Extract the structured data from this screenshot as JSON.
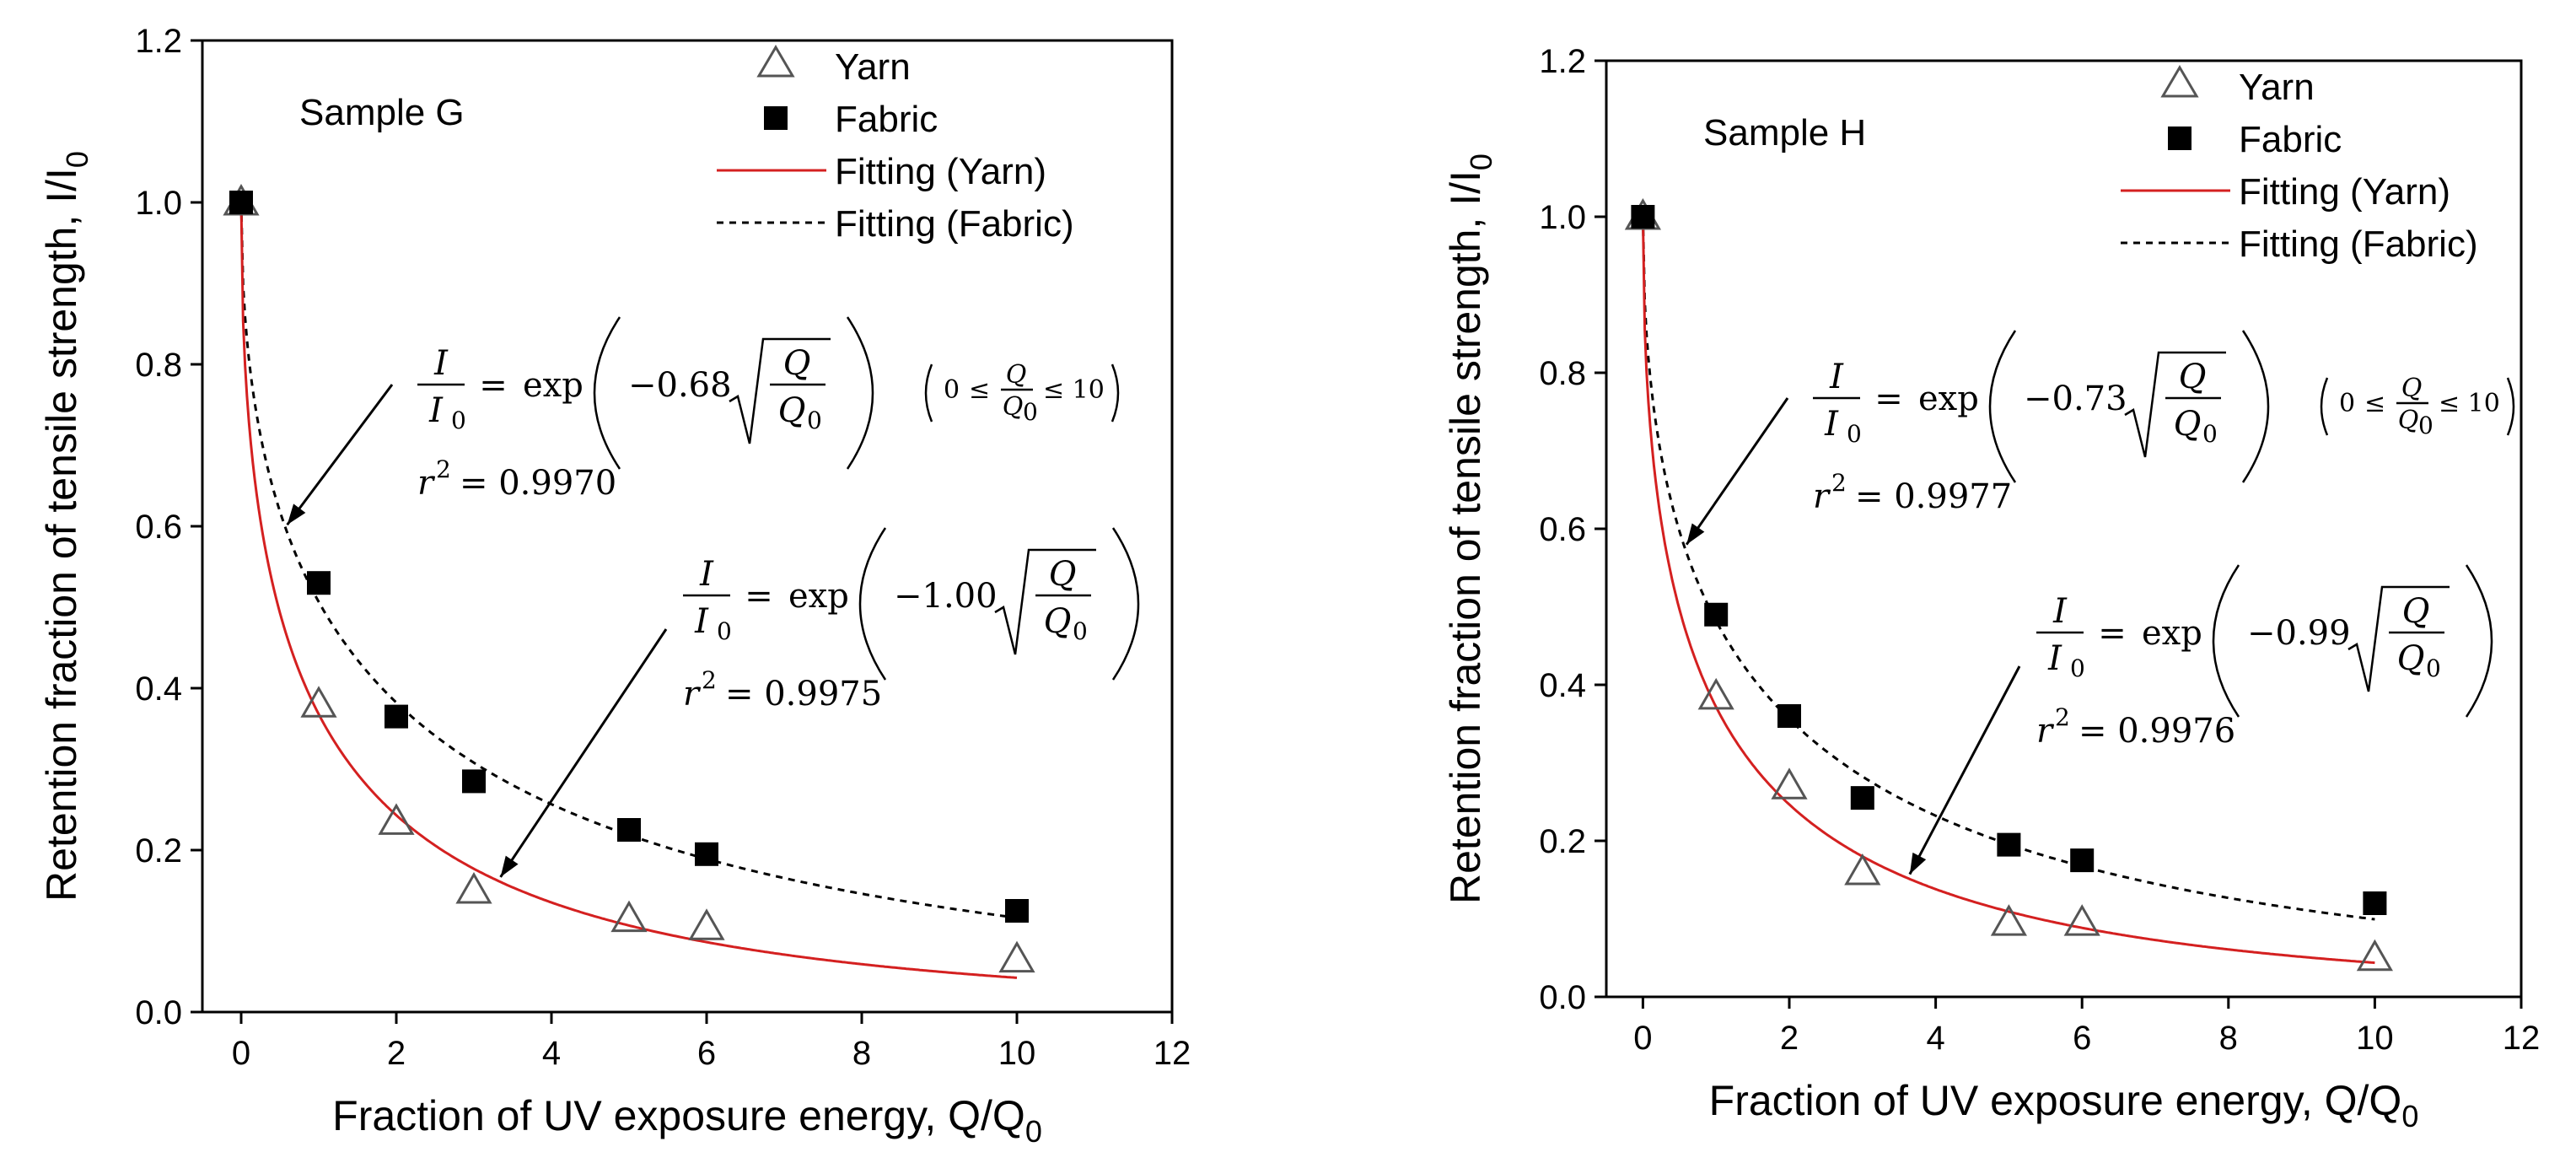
{
  "colors": {
    "fit_yarn": "#d42020",
    "fit_fabric": "#000000",
    "yarn_marker": "#555555",
    "fabric_marker": "#000000"
  },
  "chart_data": [
    {
      "type": "scatter",
      "sample_label": "Sample G",
      "xlabel": "Fraction of UV exposure energy, Q/Q",
      "xlabel_sub": "0",
      "ylabel": "Retention fraction of tensile strength, I/I",
      "ylabel_sub": "0",
      "xlim": [
        -0.5,
        12
      ],
      "ylim": [
        0.0,
        1.2
      ],
      "xticks": [
        0,
        2,
        4,
        6,
        8,
        10,
        12
      ],
      "yticks": [
        0.0,
        0.2,
        0.4,
        0.6,
        0.8,
        1.0,
        1.2
      ],
      "xtick_labels": [
        "0",
        "2",
        "4",
        "6",
        "8",
        "10",
        "12"
      ],
      "ytick_labels": [
        "0.0",
        "0.2",
        "0.4",
        "0.6",
        "0.8",
        "1.0",
        "1.2"
      ],
      "legend": {
        "yarn": "Yarn",
        "fabric": "Fabric",
        "fit_yarn": "Fitting (Yarn)",
        "fit_fabric": "Fitting (Fabric)"
      },
      "series": [
        {
          "name": "Yarn",
          "x": [
            0,
            1,
            2,
            3,
            5,
            6,
            10
          ],
          "y": [
            1.0,
            0.38,
            0.235,
            0.15,
            0.115,
            0.105,
            0.065
          ]
        },
        {
          "name": "Fabric",
          "x": [
            0,
            1,
            2,
            3,
            5,
            6,
            10
          ],
          "y": [
            1.0,
            0.53,
            0.365,
            0.285,
            0.225,
            0.195,
            0.125
          ]
        }
      ],
      "fits": [
        {
          "name": "Fitting (Yarn)",
          "coef": 1.0,
          "r2": "0.9975"
        },
        {
          "name": "Fitting (Fabric)",
          "coef": 0.68,
          "r2": "0.9970"
        }
      ],
      "fabric_eq": {
        "coef_text": "−0.68",
        "r2_text": "= 0.9970",
        "range_text": "≤ 10"
      },
      "yarn_eq": {
        "coef_text": "−1.00",
        "r2_text": "= 0.9975"
      }
    },
    {
      "type": "scatter",
      "sample_label": "Sample H",
      "xlabel": "Fraction of UV exposure energy, Q/Q",
      "xlabel_sub": "0",
      "ylabel": "Retention fraction of tensile strength, I/I",
      "ylabel_sub": "0",
      "xlim": [
        -0.5,
        12
      ],
      "ylim": [
        0.0,
        1.2
      ],
      "xticks": [
        0,
        2,
        4,
        6,
        8,
        10,
        12
      ],
      "yticks": [
        0.0,
        0.2,
        0.4,
        0.6,
        0.8,
        1.0,
        1.2
      ],
      "xtick_labels": [
        "0",
        "2",
        "4",
        "6",
        "8",
        "10",
        "12"
      ],
      "ytick_labels": [
        "0.0",
        "0.2",
        "0.4",
        "0.6",
        "0.8",
        "1.0",
        "1.2"
      ],
      "legend": {
        "yarn": "Yarn",
        "fabric": "Fabric",
        "fit_yarn": "Fitting (Yarn)",
        "fit_fabric": "Fitting (Fabric)"
      },
      "series": [
        {
          "name": "Yarn",
          "x": [
            0,
            1,
            2,
            3,
            5,
            6,
            10
          ],
          "y": [
            1.0,
            0.385,
            0.27,
            0.16,
            0.095,
            0.095,
            0.05
          ]
        },
        {
          "name": "Fabric",
          "x": [
            0,
            1,
            2,
            3,
            5,
            6,
            10
          ],
          "y": [
            1.0,
            0.49,
            0.36,
            0.255,
            0.195,
            0.175,
            0.12
          ]
        }
      ],
      "fits": [
        {
          "name": "Fitting (Yarn)",
          "coef": 0.99,
          "r2": "0.9976"
        },
        {
          "name": "Fitting (Fabric)",
          "coef": 0.73,
          "r2": "0.9977"
        }
      ],
      "fabric_eq": {
        "coef_text": "−0.73",
        "r2_text": "= 0.9977",
        "range_text": "≤ 10"
      },
      "yarn_eq": {
        "coef_text": "−0.99",
        "r2_text": "= 0.9976"
      }
    }
  ],
  "eq_common": {
    "I": "I",
    "I0": "I",
    "sub0": "0",
    "equals": "=",
    "exp": "exp",
    "Q": "Q",
    "Q0": "Q",
    "zero": "0",
    "leq": "≤",
    "r": "r",
    "sq": "2"
  }
}
